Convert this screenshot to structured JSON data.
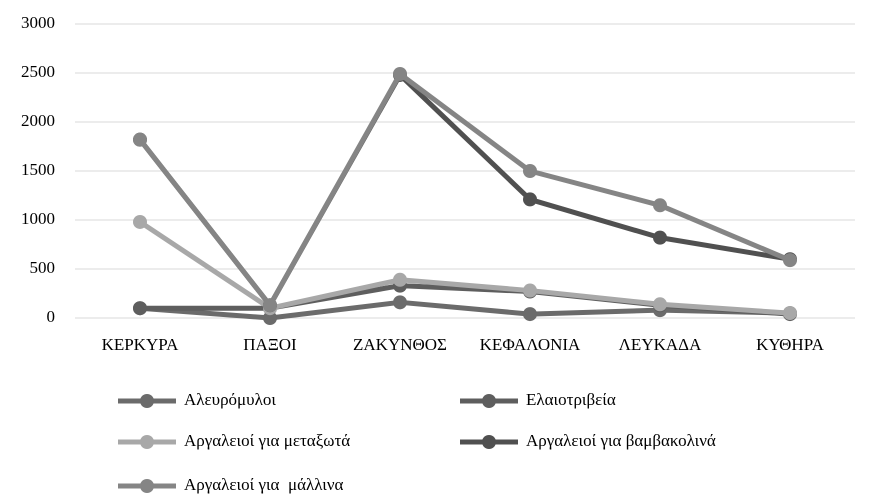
{
  "chart_data": {
    "type": "line",
    "categories": [
      "ΚΕΡΚΥΡΑ",
      "ΠΑΞΟΙ",
      "ΖΑΚΥΝΘΟΣ",
      "ΚΕΦΑΛΟΝΙΑ",
      "ΛΕΥΚΑΔΑ",
      "ΚΥΘΗΡΑ"
    ],
    "series": [
      {
        "name": "Αλευρόμυλοι",
        "color": "#6b6b6b",
        "values": [
          100,
          0,
          160,
          40,
          80,
          50
        ]
      },
      {
        "name": "Ελαιοτριβεία",
        "color": "#5e5e5e",
        "values": [
          100,
          100,
          330,
          270,
          130,
          40
        ]
      },
      {
        "name": "Αργαλειοί για μεταξωτά",
        "color": "#a8a8a8",
        "values": [
          980,
          100,
          390,
          280,
          140,
          50
        ]
      },
      {
        "name": "Αργαλειοί για βαμβακολινά",
        "color": "#505050",
        "values": [
          1820,
          130,
          2480,
          1210,
          820,
          600
        ]
      },
      {
        "name": "Αργαλειοί για  μάλλινα",
        "color": "#858585",
        "values": [
          1820,
          130,
          2490,
          1500,
          1150,
          590
        ]
      }
    ],
    "ylim": [
      0,
      3000
    ],
    "yticks": [
      0,
      500,
      1000,
      1500,
      2000,
      2500,
      3000
    ],
    "grid": true
  }
}
